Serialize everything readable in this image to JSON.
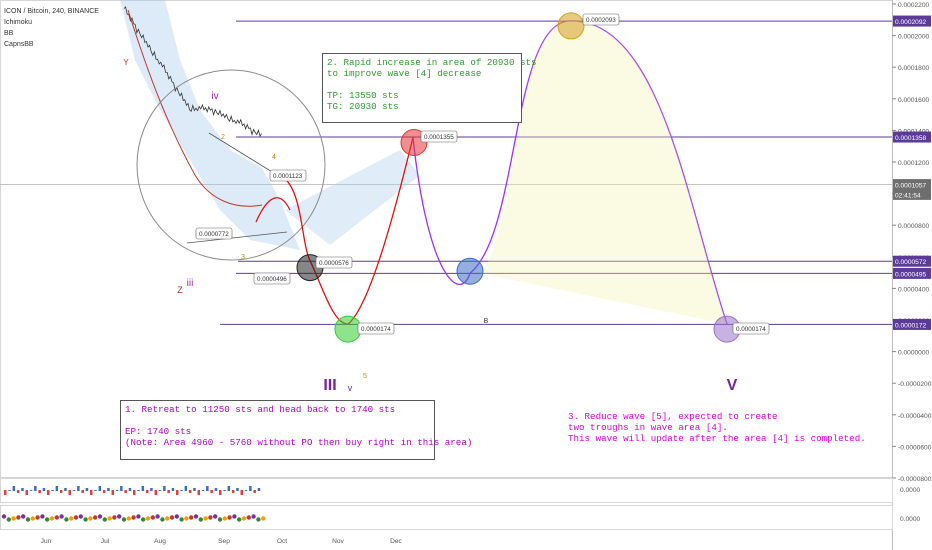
{
  "header": {
    "symbol_line": "ICON / Bitcoin, 240, BINANCE",
    "indicators": [
      "Ichimoku",
      "BB",
      "CapnsBB"
    ]
  },
  "chart_data": {
    "type": "line",
    "title": "ICON / Bitcoin, 240, BINANCE",
    "y_axis_position": "right",
    "ylim": [
      -8e-05,
      0.00022
    ],
    "y_ticks": [
      "0.0002200",
      "0.0002000",
      "0.0001800",
      "0.0001600",
      "0.0001400",
      "0.0001200",
      "0.0001000",
      "0.0000800",
      "0.0000600",
      "0.0000400",
      "0.0000200",
      "0.0000000",
      "-0.0000200",
      "-0.0000400",
      "-0.0000600",
      "-0.0000800"
    ],
    "x_ticks": [
      "Jun",
      "Jul",
      "Aug",
      "Sep",
      "Oct",
      "Nov",
      "Dec"
    ],
    "price_tags": [
      {
        "label": "0.0002092",
        "value": 0.0002092,
        "color": "#5b3a9a"
      },
      {
        "label": "0.0001358",
        "value": 0.0001358,
        "color": "#5b3a9a"
      },
      {
        "label": "0.0001057",
        "value": 0.0001057,
        "color": "#6e6e6e"
      },
      {
        "label": "02:41:54",
        "value": 9.95e-05,
        "color": "#6e6e6e"
      },
      {
        "label": "0.0000572",
        "value": 5.72e-05,
        "color": "#5b3a9a"
      },
      {
        "label": "0.0000495",
        "value": 4.95e-05,
        "color": "#5b3a9a"
      },
      {
        "label": "0.0000172",
        "value": 1.72e-05,
        "color": "#5b3a9a"
      }
    ],
    "hlines": [
      0.0002092,
      0.0001358,
      5.72e-05,
      4.95e-05,
      1.72e-05
    ],
    "projection_path": [
      {
        "x": "Sep 24",
        "y": 0.0001123
      },
      {
        "x": "Oct 8",
        "y": 5.76e-05
      },
      {
        "x": "Oct 21",
        "y": 1.74e-05
      },
      {
        "x": "Nov 12",
        "y": 0.0001355
      },
      {
        "x": "Nov 20",
        "y": 0.0001
      },
      {
        "x": "Dec 6",
        "y": 4.96e-05
      },
      {
        "x": "Jan 2",
        "y": 0.0002093
      },
      {
        "x": "Feb 20",
        "y": 1.74e-05
      }
    ],
    "point_markers": [
      {
        "label": "0.0000576",
        "color": "#222222"
      },
      {
        "label": "0.0000174",
        "color": "#33cc33"
      },
      {
        "label": "0.0001355",
        "color": "#e33333"
      },
      {
        "label": "",
        "color": "#3b6cc4"
      },
      {
        "label": "0.0002093",
        "color": "#d4a020"
      },
      {
        "label": "0.0000174",
        "color": "#9b72c8"
      }
    ],
    "small_callouts": [
      "0.0001123",
      "0.0000772",
      "0.0000496"
    ],
    "wave_labels": [
      {
        "text": "A",
        "color": "#444444"
      },
      {
        "text": "B",
        "color": "#444444"
      },
      {
        "text": "III",
        "color": "#7a1fa2"
      },
      {
        "text": "v",
        "color": "#7a1fa2"
      },
      {
        "text": "5",
        "color": "#c48a00"
      },
      {
        "text": "V",
        "color": "#7a1fa2"
      },
      {
        "text": "iv",
        "color": "#9c27b0"
      },
      {
        "text": "iii",
        "color": "#9c27b0"
      },
      {
        "text": "Z",
        "color": "#c62828"
      },
      {
        "text": "Y",
        "color": "#c62828"
      },
      {
        "text": "2",
        "color": "#c48a00"
      },
      {
        "text": "3",
        "color": "#c48a00"
      },
      {
        "text": "4",
        "color": "#c48a00"
      }
    ],
    "lower_pane_labels": [
      "0.0000",
      "0.0000"
    ]
  },
  "notes": {
    "note1": "1. Retreat to 11250 sts and head back to 1740 sts\n\nEP: 1740 sts\n(Note: Area 4960 - 5760 without PO then buy right in this area)",
    "note2": "2. Rapid increase in area of 20930 sts\nto improve wave [4] decrease\n\nTP: 13550 sts\nTG: 20930 sts",
    "note3": "3. Reduce wave [5], expected to create\ntwo troughs in wave area [4].\nThis wave will update after the area [4] is completed."
  },
  "colors": {
    "hline": "#5b3a9a",
    "projection_purple": "#9b30ff",
    "projection_red": "#e01010",
    "price_line": "#333333"
  }
}
